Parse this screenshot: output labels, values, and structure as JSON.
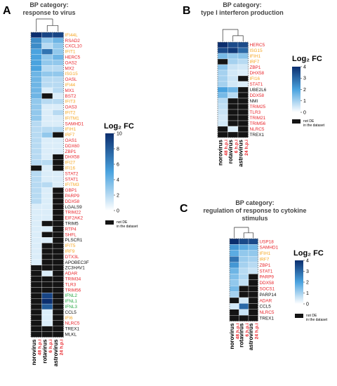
{
  "colors": {
    "gene_red": "#e8242a",
    "gene_orange": "#f5a623",
    "gene_green": "#27a844",
    "gene_black": "#111111",
    "not_de": "#141414",
    "timepoint": "#e8242a",
    "scale_low": "#ffffff",
    "scale_mid": "#4aa3df",
    "scale_high": "#0b2e6e"
  },
  "samples": [
    {
      "name": "norovirus",
      "time": "48 h.p.i"
    },
    {
      "name": "rotavirus",
      "time": "6 h.p.i"
    },
    {
      "name": "astrovirus",
      "time": "24 h.p.i"
    }
  ],
  "panels": [
    {
      "letter": "A",
      "title_lines": [
        "BP category:",
        "response to virus"
      ],
      "legend": {
        "title": "Log₂ FC",
        "ticks": [
          10,
          8,
          6,
          4,
          2,
          0
        ],
        "max": 10,
        "note": [
          "not DE",
          "in the dataset"
        ]
      },
      "genes": [
        {
          "name": "IFI44L",
          "color": "orange"
        },
        {
          "name": "RSAD2",
          "color": "red"
        },
        {
          "name": "CXCL10",
          "color": "red"
        },
        {
          "name": "IFIT1",
          "color": "orange"
        },
        {
          "name": "HERC5",
          "color": "red"
        },
        {
          "name": "OAS2",
          "color": "red"
        },
        {
          "name": "MX2",
          "color": "red"
        },
        {
          "name": "ISG15",
          "color": "orange"
        },
        {
          "name": "OASL",
          "color": "red"
        },
        {
          "name": "IFI44",
          "color": "orange"
        },
        {
          "name": "MX1",
          "color": "red"
        },
        {
          "name": "BST2",
          "color": "red"
        },
        {
          "name": "IFIT3",
          "color": "orange"
        },
        {
          "name": "OAS3",
          "color": "red"
        },
        {
          "name": "IFIT2",
          "color": "orange"
        },
        {
          "name": "IFITM1",
          "color": "orange"
        },
        {
          "name": "SAMHD1",
          "color": "red"
        },
        {
          "name": "IFIH1",
          "color": "orange"
        },
        {
          "name": "IRF7",
          "color": "orange"
        },
        {
          "name": "OAS1",
          "color": "red"
        },
        {
          "name": "DDX60",
          "color": "red"
        },
        {
          "name": "ZBP1",
          "color": "red"
        },
        {
          "name": "DHX58",
          "color": "red"
        },
        {
          "name": "IFI27",
          "color": "orange"
        },
        {
          "name": "IFI16",
          "color": "orange"
        },
        {
          "name": "STAT2",
          "color": "red"
        },
        {
          "name": "STAT1",
          "color": "red"
        },
        {
          "name": "IFITM3",
          "color": "orange"
        },
        {
          "name": "GBP1",
          "color": "red"
        },
        {
          "name": "PARP9",
          "color": "red"
        },
        {
          "name": "DDX58",
          "color": "red"
        },
        {
          "name": "LGALS9",
          "color": "black"
        },
        {
          "name": "TRIM22",
          "color": "red"
        },
        {
          "name": "EIF2AK2",
          "color": "red"
        },
        {
          "name": "TRIM5",
          "color": "black"
        },
        {
          "name": "RTP4",
          "color": "red"
        },
        {
          "name": "SHFL",
          "color": "red"
        },
        {
          "name": "PLSCR1",
          "color": "black"
        },
        {
          "name": "IFIT5",
          "color": "orange"
        },
        {
          "name": "IRF9",
          "color": "orange"
        },
        {
          "name": "DTX3L",
          "color": "red"
        },
        {
          "name": "APOBEC3F",
          "color": "black"
        },
        {
          "name": "ZC3HAV1",
          "color": "black"
        },
        {
          "name": "ADAR",
          "color": "red"
        },
        {
          "name": "TRIM34",
          "color": "red"
        },
        {
          "name": "TLR3",
          "color": "red"
        },
        {
          "name": "TRIM56",
          "color": "red"
        },
        {
          "name": "IFNL2",
          "color": "green"
        },
        {
          "name": "IFNL1",
          "color": "green"
        },
        {
          "name": "IFNL3",
          "color": "green"
        },
        {
          "name": "CCL5",
          "color": "black"
        },
        {
          "name": "IFI6",
          "color": "orange"
        },
        {
          "name": "NLRC5",
          "color": "red"
        },
        {
          "name": "TREX1",
          "color": "black"
        },
        {
          "name": "MLKL",
          "color": "black"
        }
      ],
      "values": [
        [
          10,
          9,
          9
        ],
        [
          6,
          3,
          4
        ],
        [
          6,
          2,
          3
        ],
        [
          5,
          7,
          3
        ],
        [
          5,
          3,
          4
        ],
        [
          5,
          3,
          3
        ],
        [
          5,
          2,
          2
        ],
        [
          4,
          3,
          3
        ],
        [
          4,
          2,
          2
        ],
        [
          4,
          2,
          2
        ],
        [
          4,
          1,
          2
        ],
        [
          4,
          null,
          1
        ],
        [
          3,
          2,
          2
        ],
        [
          3,
          1,
          1
        ],
        [
          3,
          1,
          2
        ],
        [
          3,
          1,
          1
        ],
        [
          2,
          1,
          1
        ],
        [
          2,
          2,
          2
        ],
        [
          2,
          3,
          null
        ],
        [
          2,
          1,
          1
        ],
        [
          2,
          1,
          1
        ],
        [
          2,
          1,
          1
        ],
        [
          2,
          1,
          null
        ],
        [
          2,
          2,
          null
        ],
        [
          null,
          1,
          null
        ],
        [
          2,
          1,
          1
        ],
        [
          2,
          1,
          1
        ],
        [
          2,
          2,
          1
        ],
        [
          2,
          1,
          null
        ],
        [
          2,
          1,
          null
        ],
        [
          2,
          1,
          null
        ],
        [
          1,
          1,
          null
        ],
        [
          1,
          1,
          null
        ],
        [
          1,
          1,
          null
        ],
        [
          1,
          null,
          null
        ],
        [
          1,
          1,
          null
        ],
        [
          1,
          null,
          null
        ],
        [
          1,
          1,
          null
        ],
        [
          1,
          null,
          null
        ],
        [
          1,
          null,
          null
        ],
        [
          1,
          null,
          null
        ],
        [
          1,
          null,
          null
        ],
        [
          null,
          null,
          null
        ],
        [
          null,
          1,
          null
        ],
        [
          null,
          null,
          null
        ],
        [
          null,
          null,
          null
        ],
        [
          null,
          null,
          null
        ],
        [
          null,
          9,
          null
        ],
        [
          null,
          10,
          null
        ],
        [
          null,
          8,
          null
        ],
        [
          null,
          1,
          null
        ],
        [
          null,
          1,
          null
        ],
        [
          null,
          1,
          null
        ],
        [
          null,
          null,
          null
        ],
        [
          null,
          null,
          null
        ]
      ]
    },
    {
      "letter": "B",
      "title_lines": [
        "BP category:",
        "type I interferon production"
      ],
      "legend": {
        "title": "Log₂ FC",
        "ticks": [
          4,
          3,
          2,
          1,
          0
        ],
        "max": 4,
        "note": [
          "not DE",
          "in the dataset"
        ]
      },
      "genes": [
        {
          "name": "HERC5",
          "color": "red"
        },
        {
          "name": "ISG15",
          "color": "orange"
        },
        {
          "name": "IFIH1",
          "color": "orange"
        },
        {
          "name": "IRF7",
          "color": "orange"
        },
        {
          "name": "ZBP1",
          "color": "red"
        },
        {
          "name": "DHX58",
          "color": "red"
        },
        {
          "name": "IFI16",
          "color": "orange"
        },
        {
          "name": "STAT1",
          "color": "red"
        },
        {
          "name": "UBE2L6",
          "color": "black"
        },
        {
          "name": "DDX58",
          "color": "red"
        },
        {
          "name": "NMI",
          "color": "black"
        },
        {
          "name": "TRIM25",
          "color": "red"
        },
        {
          "name": "TLR3",
          "color": "red"
        },
        {
          "name": "TRIM21",
          "color": "red"
        },
        {
          "name": "TRIM56",
          "color": "red"
        },
        {
          "name": "NLRC5",
          "color": "red"
        },
        {
          "name": "TREX1",
          "color": "black"
        }
      ],
      "values": [
        [
          4,
          3.5,
          3.5
        ],
        [
          3.5,
          3.8,
          3
        ],
        [
          1.5,
          1.2,
          1.3
        ],
        [
          null,
          1,
          0.8
        ],
        [
          1.3,
          0.6,
          0.5
        ],
        [
          1,
          0.5,
          0.4
        ],
        [
          1,
          0.6,
          null
        ],
        [
          1,
          0.5,
          0.4
        ],
        [
          2,
          1.6,
          null
        ],
        [
          1.5,
          0.8,
          null
        ],
        [
          0.8,
          null,
          null
        ],
        [
          0.7,
          null,
          null
        ],
        [
          0.6,
          null,
          null
        ],
        [
          0.5,
          null,
          null
        ],
        [
          0.5,
          null,
          null
        ],
        [
          null,
          0.4,
          null
        ],
        [
          null,
          null,
          null
        ]
      ]
    },
    {
      "letter": "C",
      "title_lines": [
        "BP category:",
        "regulation of response to cytokine",
        "stimulus"
      ],
      "legend": {
        "title": "Log₂ FC",
        "ticks": [
          4,
          3,
          2,
          1,
          0
        ],
        "max": 4,
        "note": [
          "not DE",
          "in the dataset"
        ]
      },
      "genes": [
        {
          "name": "USP18",
          "color": "red"
        },
        {
          "name": "SAMHD1",
          "color": "red"
        },
        {
          "name": "IFIH1",
          "color": "orange"
        },
        {
          "name": "IRF7",
          "color": "orange"
        },
        {
          "name": "ZBP1",
          "color": "red"
        },
        {
          "name": "STAT1",
          "color": "red"
        },
        {
          "name": "PARP9",
          "color": "red"
        },
        {
          "name": "DDX58",
          "color": "red"
        },
        {
          "name": "SOCS1",
          "color": "red"
        },
        {
          "name": "PARP14",
          "color": "black"
        },
        {
          "name": "ADAR",
          "color": "red"
        },
        {
          "name": "CCL5",
          "color": "black"
        },
        {
          "name": "NLRC5",
          "color": "red"
        },
        {
          "name": "TREX1",
          "color": "black"
        }
      ],
      "values": [
        [
          4,
          3.5,
          3.5
        ],
        [
          2.2,
          1.8,
          1.6
        ],
        [
          1.8,
          1.2,
          1.2
        ],
        [
          2.8,
          1.1,
          1
        ],
        [
          2.2,
          1,
          0.8
        ],
        [
          1.6,
          0.8,
          0.6
        ],
        [
          1.4,
          0.9,
          null
        ],
        [
          1.2,
          0.7,
          null
        ],
        [
          1.5,
          null,
          null
        ],
        [
          1,
          null,
          null
        ],
        [
          null,
          0.5,
          null
        ],
        [
          0.5,
          3,
          null
        ],
        [
          null,
          0.6,
          null
        ],
        [
          null,
          null,
          null
        ]
      ]
    }
  ]
}
